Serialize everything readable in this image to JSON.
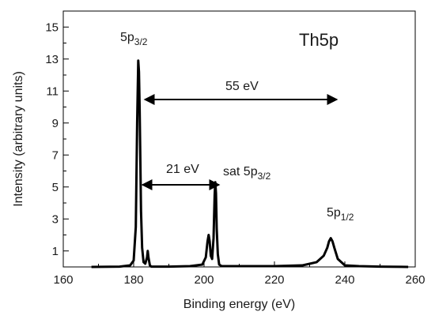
{
  "chart_data": {
    "type": "line",
    "title": "",
    "xlabel": "Binding energy (eV)",
    "ylabel": "Intensity (arbitrary units)",
    "xlim": [
      160,
      260
    ],
    "ylim": [
      0,
      16
    ],
    "x_ticks": [
      160,
      180,
      200,
      220,
      240,
      260
    ],
    "y_ticks": [
      1,
      3,
      5,
      7,
      9,
      11,
      13,
      15
    ],
    "grid": false,
    "series": [
      {
        "color": "#000000",
        "x": [
          168,
          176,
          179,
          180,
          180.6,
          181.0,
          181.3,
          181.5,
          181.7,
          181.9,
          182.1,
          182.4,
          182.8,
          183.3,
          183.8,
          184.0,
          184.2,
          184.6,
          185,
          190,
          196,
          199.5,
          200.5,
          201.0,
          201.3,
          201.6,
          201.9,
          202.3,
          202.7,
          203.0,
          203.2,
          203.4,
          203.6,
          203.9,
          204.3,
          205,
          210,
          220,
          228,
          232,
          234,
          235,
          235.5,
          236,
          236.5,
          237,
          238,
          240,
          244,
          250,
          258
        ],
        "y": [
          0.0,
          0.02,
          0.1,
          0.4,
          2.5,
          9.0,
          12.9,
          12.2,
          9.8,
          6.5,
          3.5,
          1.2,
          0.3,
          0.2,
          0.6,
          1.0,
          0.6,
          0.1,
          0.02,
          0.02,
          0.05,
          0.15,
          0.6,
          1.6,
          2.0,
          1.6,
          0.7,
          0.5,
          1.8,
          4.5,
          5.3,
          4.6,
          2.4,
          0.8,
          0.15,
          0.05,
          0.05,
          0.05,
          0.1,
          0.3,
          0.7,
          1.2,
          1.6,
          1.8,
          1.6,
          1.2,
          0.5,
          0.1,
          0.05,
          0.02,
          0.0
        ]
      }
    ],
    "annotations": {
      "region": "Th5p",
      "peak_main": "5p",
      "peak_main_sub": "3/2",
      "arrow_55": "55 eV",
      "arrow_21": "21 eV",
      "sat_prefix": "sat 5p",
      "sat_sub": "3/2",
      "peak_half": "5p",
      "peak_half_sub": "1/2"
    }
  }
}
